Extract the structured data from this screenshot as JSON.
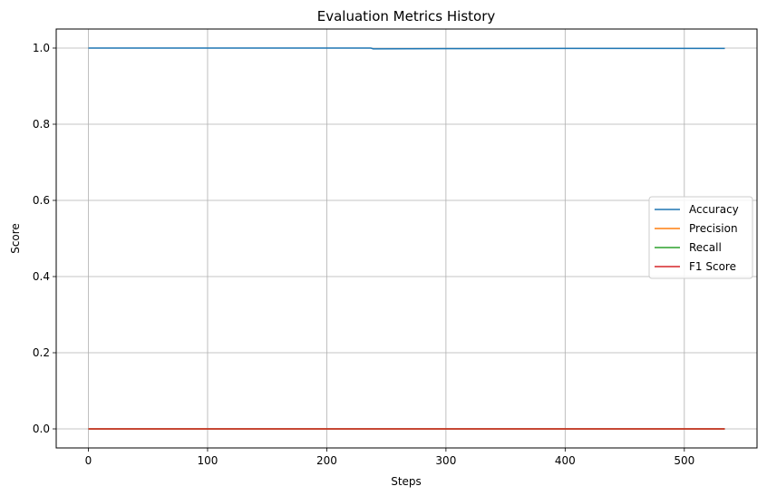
{
  "chart_data": {
    "type": "line",
    "title": "Evaluation Metrics History",
    "xlabel": "Steps",
    "ylabel": "Score",
    "xlim": [
      -27,
      561
    ],
    "ylim": [
      -0.05,
      1.05
    ],
    "xticks": [
      0,
      100,
      200,
      300,
      400,
      500
    ],
    "yticks": [
      0.0,
      0.2,
      0.4,
      0.6,
      0.8,
      1.0
    ],
    "xtick_labels": [
      "0",
      "100",
      "200",
      "300",
      "400",
      "500"
    ],
    "ytick_labels": [
      "0.0",
      "0.2",
      "0.4",
      "0.6",
      "0.8",
      "1.0"
    ],
    "grid": true,
    "legend_position": "center-right",
    "series": [
      {
        "name": "Accuracy",
        "color": "#1f77b4",
        "points": [
          [
            0,
            1.0
          ],
          [
            237,
            1.0
          ],
          [
            239,
            0.998
          ],
          [
            300,
            0.9985
          ],
          [
            400,
            0.999
          ],
          [
            534,
            0.999
          ]
        ]
      },
      {
        "name": "Precision",
        "color": "#ff7f0e",
        "points": [
          [
            0,
            0.0
          ],
          [
            534,
            0.0
          ]
        ]
      },
      {
        "name": "Recall",
        "color": "#2ca02c",
        "points": [
          [
            0,
            0.0
          ],
          [
            534,
            0.0
          ]
        ]
      },
      {
        "name": "F1 Score",
        "color": "#d62728",
        "points": [
          [
            0,
            0.0
          ],
          [
            534,
            0.0
          ]
        ]
      }
    ]
  }
}
